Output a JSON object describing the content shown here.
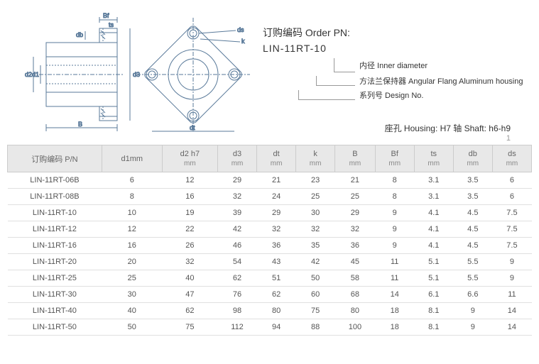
{
  "order": {
    "title": "订购编码 Order PN:",
    "code": "LIN-11RT-10",
    "callouts": [
      "内径 Inner diameter",
      "方法兰保持器 Angular Flang Aluminum housing",
      "系列号 Design No."
    ],
    "housing_note": "座孔 Housing: H7    轴 Shaft: h6-h9",
    "page": "1"
  },
  "diagram": {
    "labels": [
      "B",
      "Bf",
      "ts",
      "db",
      "d2",
      "d1",
      "d3",
      "dt",
      "ds",
      "k"
    ]
  },
  "table": {
    "headers": [
      {
        "label": "订购编码 P/N",
        "unit": ""
      },
      {
        "label": "d1mm",
        "unit": ""
      },
      {
        "label": "d2 h7",
        "unit": "mm"
      },
      {
        "label": "d3",
        "unit": "mm"
      },
      {
        "label": "dt",
        "unit": "mm"
      },
      {
        "label": "k",
        "unit": "mm"
      },
      {
        "label": "B",
        "unit": "mm"
      },
      {
        "label": "Bf",
        "unit": "mm"
      },
      {
        "label": "ts",
        "unit": "mm"
      },
      {
        "label": "db",
        "unit": "mm"
      },
      {
        "label": "ds",
        "unit": "mm"
      }
    ],
    "rows": [
      [
        "LIN-11RT-06B",
        6,
        12,
        29,
        21,
        23,
        21,
        8,
        3.1,
        3.5,
        6
      ],
      [
        "LIN-11RT-08B",
        8,
        16,
        32,
        24,
        25,
        25,
        8,
        3.1,
        3.5,
        6
      ],
      [
        "LIN-11RT-10",
        10,
        19,
        39,
        29,
        30,
        29,
        9,
        4.1,
        4.5,
        7.5
      ],
      [
        "LIN-11RT-12",
        12,
        22,
        42,
        32,
        32,
        32,
        9,
        4.1,
        4.5,
        7.5
      ],
      [
        "LIN-11RT-16",
        16,
        26,
        46,
        36,
        35,
        36,
        9,
        4.1,
        4.5,
        7.5
      ],
      [
        "LIN-11RT-20",
        20,
        32,
        54,
        43,
        42,
        45,
        11,
        5.1,
        5.5,
        9
      ],
      [
        "LIN-11RT-25",
        25,
        40,
        62,
        51,
        50,
        58,
        11,
        5.1,
        5.5,
        9
      ],
      [
        "LIN-11RT-30",
        30,
        47,
        76,
        62,
        60,
        68,
        14,
        6.1,
        6.6,
        11
      ],
      [
        "LIN-11RT-40",
        40,
        62,
        98,
        80,
        75,
        80,
        18,
        8.1,
        9,
        14
      ],
      [
        "LIN-11RT-50",
        50,
        75,
        112,
        94,
        88,
        100,
        18,
        8.1,
        9,
        14
      ]
    ]
  },
  "colors": {
    "header_bg": "#e8e8e8",
    "border": "#cccccc",
    "text": "#555555",
    "diagram_stroke": "#5a7a9a"
  }
}
